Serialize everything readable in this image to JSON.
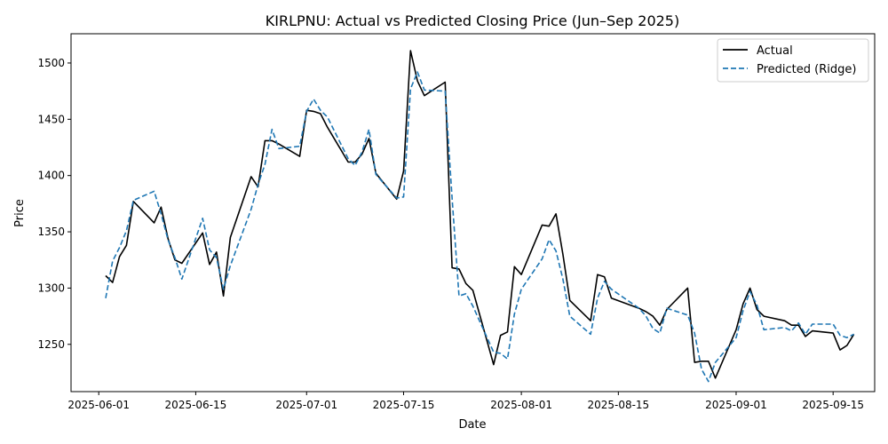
{
  "chart_data": {
    "type": "line",
    "title": "KIRLPNU: Actual vs Predicted Closing Price (Jun–Sep 2025)",
    "xlabel": "Date",
    "ylabel": "Price",
    "xlim": [
      "2025-05-28",
      "2025-09-21"
    ],
    "ylim": [
      1208,
      1526
    ],
    "x_ticks": [
      "2025-06-01",
      "2025-06-15",
      "2025-07-01",
      "2025-07-15",
      "2025-08-01",
      "2025-08-15",
      "2025-09-01",
      "2025-09-15"
    ],
    "y_ticks": [
      1250,
      1300,
      1350,
      1400,
      1450,
      1500
    ],
    "grid": false,
    "legend": "top-right",
    "x": [
      "2025-06-02",
      "2025-06-03",
      "2025-06-04",
      "2025-06-05",
      "2025-06-06",
      "2025-06-09",
      "2025-06-10",
      "2025-06-11",
      "2025-06-12",
      "2025-06-13",
      "2025-06-16",
      "2025-06-17",
      "2025-06-18",
      "2025-06-19",
      "2025-06-20",
      "2025-06-23",
      "2025-06-24",
      "2025-06-25",
      "2025-06-26",
      "2025-06-27",
      "2025-06-30",
      "2025-07-01",
      "2025-07-02",
      "2025-07-03",
      "2025-07-04",
      "2025-07-07",
      "2025-07-08",
      "2025-07-09",
      "2025-07-10",
      "2025-07-11",
      "2025-07-14",
      "2025-07-15",
      "2025-07-16",
      "2025-07-17",
      "2025-07-18",
      "2025-07-21",
      "2025-07-22",
      "2025-07-23",
      "2025-07-24",
      "2025-07-25",
      "2025-07-28",
      "2025-07-29",
      "2025-07-30",
      "2025-07-31",
      "2025-08-01",
      "2025-08-04",
      "2025-08-05",
      "2025-08-06",
      "2025-08-07",
      "2025-08-08",
      "2025-08-11",
      "2025-08-12",
      "2025-08-13",
      "2025-08-14",
      "2025-08-18",
      "2025-08-19",
      "2025-08-20",
      "2025-08-21",
      "2025-08-22",
      "2025-08-25",
      "2025-08-26",
      "2025-08-27",
      "2025-08-28",
      "2025-08-29",
      "2025-09-01",
      "2025-09-02",
      "2025-09-03",
      "2025-09-04",
      "2025-09-05",
      "2025-09-08",
      "2025-09-09",
      "2025-09-10",
      "2025-09-11",
      "2025-09-12",
      "2025-09-15",
      "2025-09-16",
      "2025-09-17",
      "2025-09-18"
    ],
    "series": [
      {
        "name": "Actual",
        "color": "#000000",
        "dash": "solid",
        "values": [
          1311,
          1305,
          1328,
          1338,
          1377,
          1358,
          1372,
          1344,
          1325,
          1322,
          1349,
          1321,
          1332,
          1293,
          1345,
          1399,
          1390,
          1431,
          1431,
          1428,
          1417,
          1458,
          1457,
          1455,
          1443,
          1412,
          1412,
          1419,
          1433,
          1402,
          1379,
          1404,
          1511,
          1484,
          1471,
          1483,
          1318,
          1317,
          1304,
          1298,
          1232,
          1258,
          1261,
          1319,
          1312,
          1356,
          1355,
          1366,
          1330,
          1289,
          1271,
          1312,
          1310,
          1291,
          1282,
          1279,
          1275,
          1267,
          1281,
          1300,
          1234,
          1235,
          1235,
          1220,
          1263,
          1286,
          1300,
          1281,
          1275,
          1271,
          1267,
          1267,
          1257,
          1262,
          1260,
          1245,
          1249,
          1259
        ]
      },
      {
        "name": "Predicted (Ridge)",
        "color": "#1f77b4",
        "dash": "dashed",
        "values": [
          1291,
          1324,
          1336,
          1351,
          1378,
          1386,
          1366,
          1343,
          1327,
          1308,
          1362,
          1334,
          1327,
          1299,
          1320,
          1370,
          1392,
          1410,
          1441,
          1424,
          1426,
          1457,
          1468,
          1458,
          1452,
          1415,
          1409,
          1421,
          1441,
          1401,
          1380,
          1381,
          1477,
          1492,
          1476,
          1475,
          1380,
          1293,
          1295,
          1284,
          1243,
          1242,
          1237,
          1277,
          1299,
          1326,
          1343,
          1333,
          1308,
          1275,
          1259,
          1291,
          1306,
          1299,
          1282,
          1275,
          1264,
          1260,
          1282,
          1276,
          1260,
          1228,
          1217,
          1234,
          1256,
          1280,
          1297,
          1285,
          1263,
          1265,
          1262,
          1269,
          1259,
          1268,
          1268,
          1258,
          1256,
          1259
        ]
      }
    ]
  }
}
